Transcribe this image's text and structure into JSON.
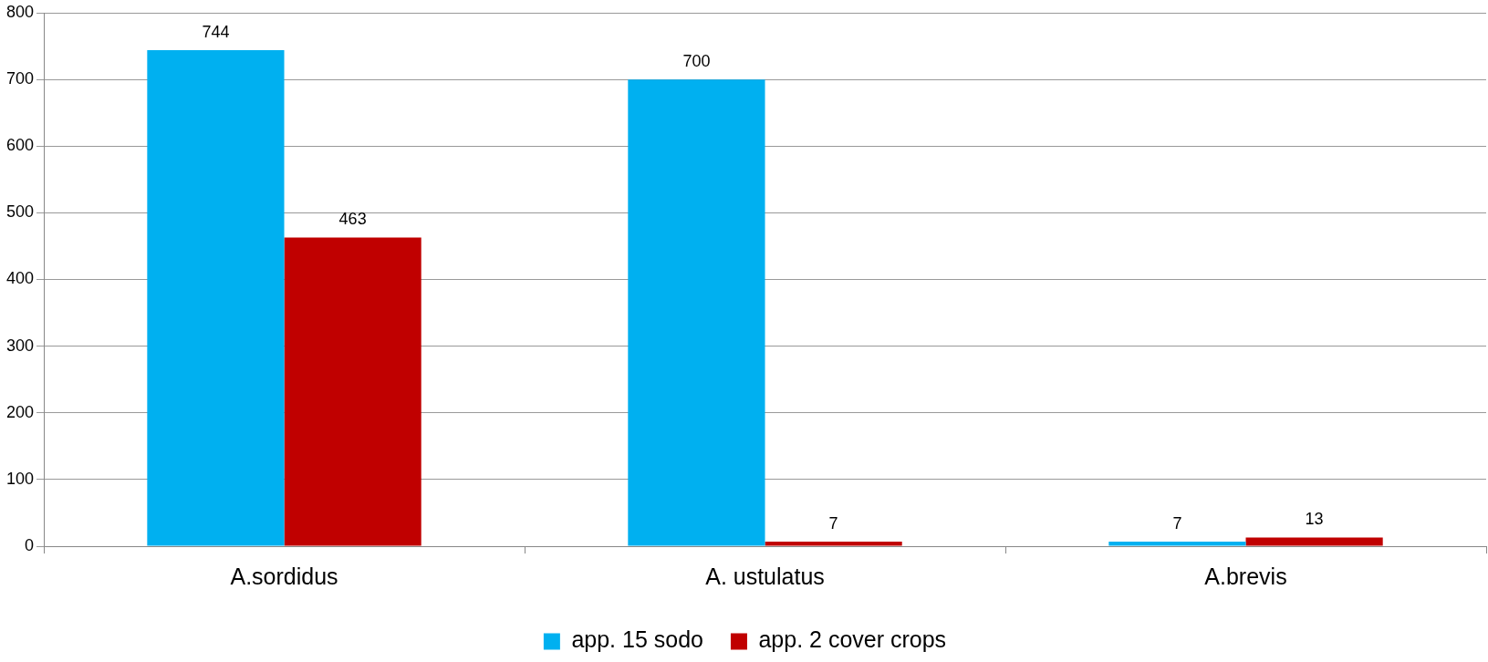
{
  "chart_data": {
    "type": "bar",
    "categories": [
      "A.sordidus",
      "A. ustulatus",
      "A.brevis"
    ],
    "series": [
      {
        "name": "app. 15 sodo",
        "color": "#00b0f0",
        "values": [
          744,
          700,
          7
        ]
      },
      {
        "name": "app. 2 cover crops",
        "color": "#c00000",
        "values": [
          463,
          7,
          13
        ]
      }
    ],
    "ylim": [
      0,
      800
    ],
    "yticks": [
      0,
      100,
      200,
      300,
      400,
      500,
      600,
      700,
      800
    ],
    "grid": "y",
    "legend": "bottom",
    "data_labels": true
  }
}
